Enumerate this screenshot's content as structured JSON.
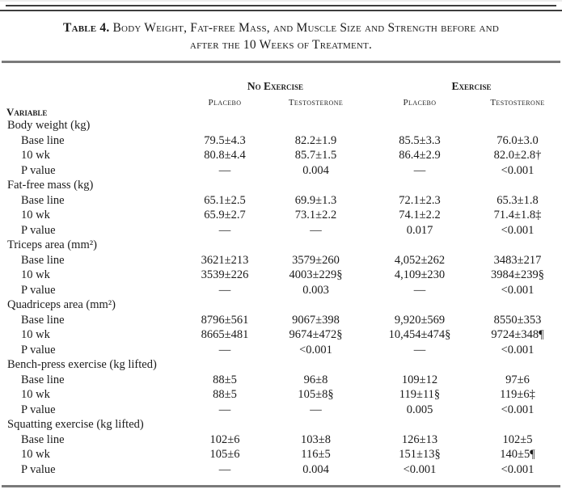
{
  "table": {
    "title_label": "Table 4.",
    "title_text": "Body Weight, Fat-free Mass, and Muscle Size and Strength before and after the 10 Weeks of Treatment.",
    "header": {
      "variable_label": "Variable",
      "group_headers": [
        "No Exercise",
        "Exercise"
      ],
      "sub_headers": [
        "Placebo",
        "Testosterone",
        "Placebo",
        "Testosterone"
      ]
    },
    "sections": [
      {
        "name": "Body weight (kg)",
        "rows": [
          {
            "label": "Base line",
            "values": [
              "79.5±4.3",
              "82.2±1.9",
              "85.5±3.3",
              "76.0±3.0"
            ]
          },
          {
            "label": "10 wk",
            "values": [
              "80.8±4.4",
              "85.7±1.5",
              "86.4±2.9",
              "82.0±2.8†"
            ]
          },
          {
            "label": "P value",
            "values": [
              "—",
              "0.004",
              "—",
              "<0.001"
            ]
          }
        ]
      },
      {
        "name": "Fat-free mass (kg)",
        "rows": [
          {
            "label": "Base line",
            "values": [
              "65.1±2.5",
              "69.9±1.3",
              "72.1±2.3",
              "65.3±1.8"
            ]
          },
          {
            "label": "10 wk",
            "values": [
              "65.9±2.7",
              "73.1±2.2",
              "74.1±2.2",
              "71.4±1.8‡"
            ]
          },
          {
            "label": "P value",
            "values": [
              "—",
              "—",
              "0.017",
              "<0.001"
            ]
          }
        ]
      },
      {
        "name": "Triceps area (mm²)",
        "rows": [
          {
            "label": "Base line",
            "values": [
              "3621±213",
              "3579±260",
              "4,052±262",
              "3483±217"
            ]
          },
          {
            "label": "10 wk",
            "values": [
              "3539±226",
              "4003±229§",
              "4,109±230",
              "3984±239§"
            ]
          },
          {
            "label": "P value",
            "values": [
              "—",
              "0.003",
              "—",
              "<0.001"
            ]
          }
        ]
      },
      {
        "name": "Quadriceps area (mm²)",
        "rows": [
          {
            "label": "Base line",
            "values": [
              "8796±561",
              "9067±398",
              "9,920±569",
              "8550±353"
            ]
          },
          {
            "label": "10 wk",
            "values": [
              "8665±481",
              "9674±472§",
              "10,454±474§",
              "9724±348¶"
            ]
          },
          {
            "label": "P value",
            "values": [
              "—",
              "<0.001",
              "—",
              "<0.001"
            ]
          }
        ]
      },
      {
        "name": "Bench-press exercise (kg lifted)",
        "rows": [
          {
            "label": "Base line",
            "values": [
              "88±5",
              "96±8",
              "109±12",
              "97±6"
            ]
          },
          {
            "label": "10 wk",
            "values": [
              "88±5",
              "105±8§",
              "119±11§",
              "119±6‡"
            ]
          },
          {
            "label": "P value",
            "values": [
              "—",
              "—",
              "0.005",
              "<0.001"
            ]
          }
        ]
      },
      {
        "name": "Squatting exercise (kg lifted)",
        "rows": [
          {
            "label": "Base line",
            "values": [
              "102±6",
              "103±8",
              "126±13",
              "102±5"
            ]
          },
          {
            "label": "10 wk",
            "values": [
              "105±6",
              "116±5",
              "151±13§",
              "140±5¶"
            ]
          },
          {
            "label": "P value",
            "values": [
              "—",
              "0.004",
              "<0.001",
              "<0.001"
            ]
          }
        ]
      }
    ]
  }
}
